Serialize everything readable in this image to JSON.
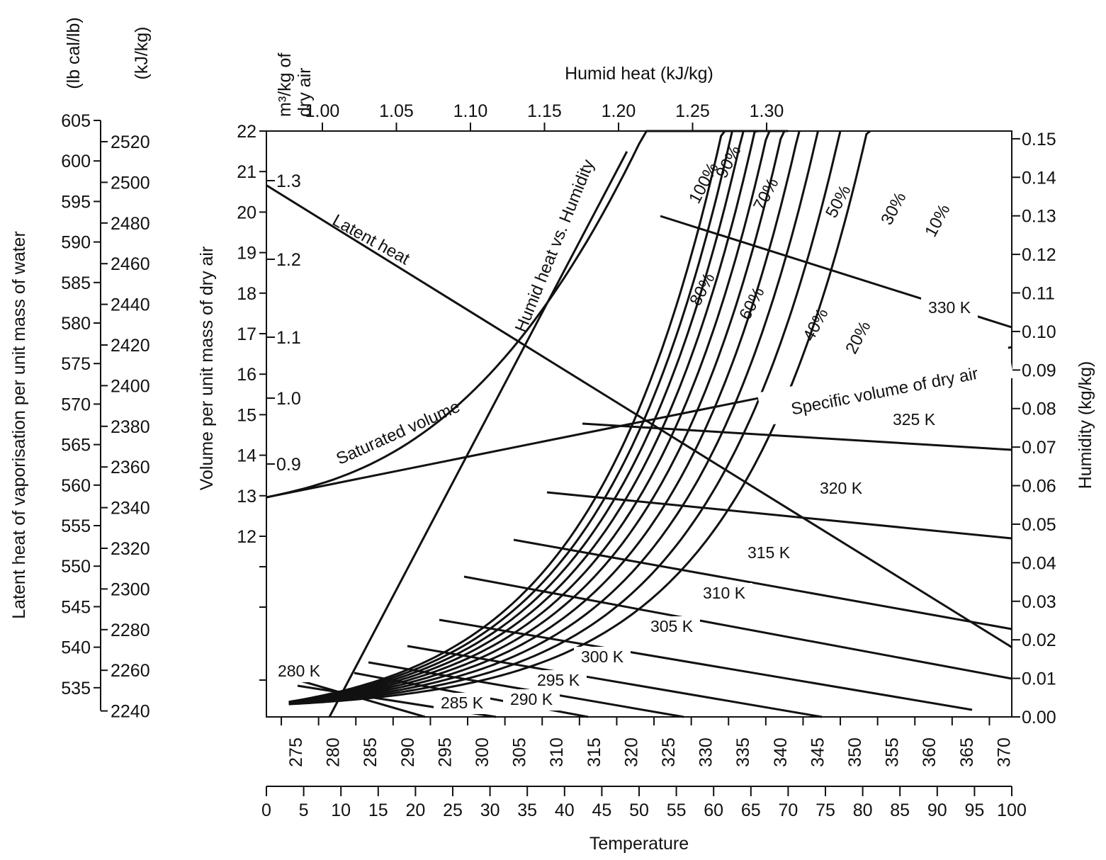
{
  "chart_data": {
    "type": "line",
    "title": "",
    "temperature_axis": {
      "title": "Temperature",
      "kelvin_ticks": [
        "275",
        "280",
        "285",
        "290",
        "295",
        "300",
        "305",
        "310",
        "315",
        "320",
        "325",
        "330",
        "335",
        "340",
        "345",
        "350",
        "355",
        "360",
        "365",
        "370"
      ],
      "celsius_ticks": [
        "0",
        "5",
        "10",
        "15",
        "20",
        "25",
        "30",
        "35",
        "40",
        "45",
        "50",
        "55",
        "60",
        "65",
        "70",
        "75",
        "80",
        "85",
        "90",
        "95",
        "100"
      ],
      "range_celsius": [
        0,
        100
      ]
    },
    "humidity_axis": {
      "title": "Humidity (kg/kg)",
      "ticks": [
        "0.00",
        "0.01",
        "0.02",
        "0.03",
        "0.04",
        "0.05",
        "0.06",
        "0.07",
        "0.08",
        "0.09",
        "0.10",
        "0.11",
        "0.12",
        "0.13",
        "0.14",
        "0.15"
      ]
    },
    "volume_axis": {
      "title": "Volume per unit mass of dry air",
      "units": "m³/kg of dry air",
      "ticks_cm": [
        "12",
        "13",
        "14",
        "15",
        "16",
        "17",
        "18",
        "19",
        "20",
        "21",
        "22"
      ],
      "ticks_m3": [
        "0.9",
        "1.0",
        "1.1",
        "1.2",
        "1.3"
      ]
    },
    "humid_heat_axis": {
      "title": "Humid heat (kJ/kg)",
      "ticks": [
        "1.00",
        "1.05",
        "1.10",
        "1.15",
        "1.20",
        "1.25",
        "1.30"
      ]
    },
    "latent_heat_axis": {
      "title": "Latent heat of vaporisation per unit mass of water",
      "lbcal_unit": "(lb cal/lb)",
      "kj_unit": "(kJ/kg)",
      "lbcal_ticks": [
        "605",
        "600",
        "595",
        "590",
        "585",
        "580",
        "575",
        "570",
        "565",
        "560",
        "555",
        "550",
        "545",
        "540",
        "535"
      ],
      "kj_ticks": [
        "2520",
        "2500",
        "2480",
        "2460",
        "2440",
        "2420",
        "2400",
        "2380",
        "2360",
        "2340",
        "2320",
        "2300",
        "2280",
        "2260",
        "2240"
      ]
    },
    "relative_humidity_curves": [
      {
        "name": "100%",
        "fraction": 1.0
      },
      {
        "name": "90%",
        "fraction": 0.9
      },
      {
        "name": "80%",
        "fraction": 0.8
      },
      {
        "name": "70%",
        "fraction": 0.7
      },
      {
        "name": "60%",
        "fraction": 0.6
      },
      {
        "name": "50%",
        "fraction": 0.5
      },
      {
        "name": "40%",
        "fraction": 0.4
      },
      {
        "name": "30%",
        "fraction": 0.3
      },
      {
        "name": "20%",
        "fraction": 0.2
      },
      {
        "name": "10%",
        "fraction": 0.1
      }
    ],
    "adiabatic_lines": [
      "280 K",
      "285 K",
      "290 K",
      "295 K",
      "300 K",
      "305 K",
      "310 K",
      "315 K",
      "320 K",
      "325 K",
      "330 K"
    ],
    "curve_labels": {
      "latent_heat": "Latent heat",
      "humid_heat": "Humid heat vs. Humidity",
      "saturated_volume": "Saturated volume",
      "specific_volume": "Specific volume of dry air"
    },
    "humid_heat_line": {
      "x_kj": [
        1.0,
        1.22
      ],
      "y_humidity": [
        0.0,
        0.15
      ]
    },
    "latent_heat_line": {
      "t_celsius": [
        0,
        100
      ],
      "y_lbcal": [
        597,
        540
      ]
    },
    "grid": false
  }
}
